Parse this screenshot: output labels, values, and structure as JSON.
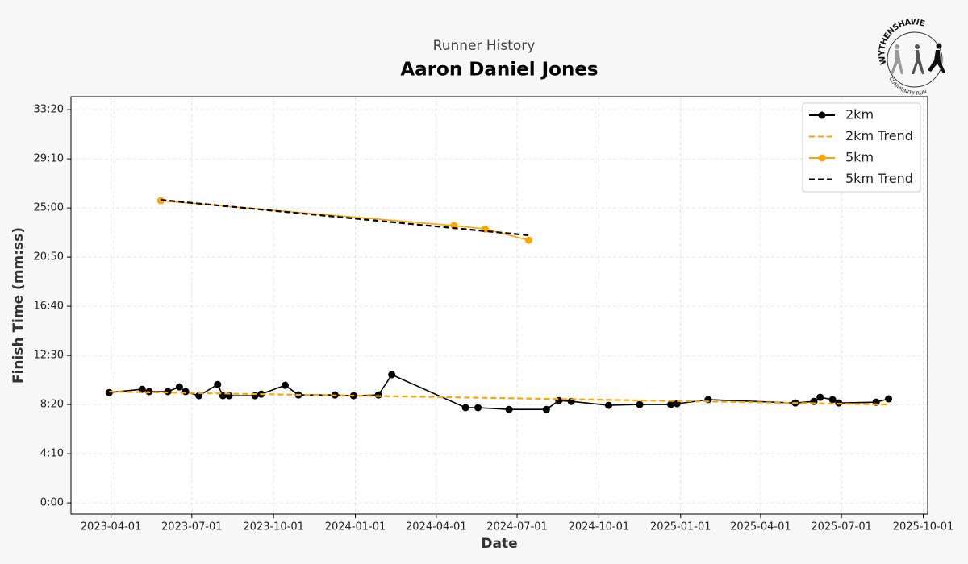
{
  "chart_data": {
    "type": "line",
    "subtitle": "Runner History",
    "title": "Aaron Daniel Jones",
    "x_label": "Date",
    "y_label": "Finish Time (mm:ss)",
    "logo_text": [
      "WYTHENSHAWE",
      "COMMUNITY RUN"
    ],
    "grid": true,
    "legend": "upper right",
    "xlim": [
      "2023-02-15",
      "2025-10-06"
    ],
    "xticks": [
      "2023-04-01",
      "2023-07-01",
      "2023-10-01",
      "2024-01-01",
      "2024-04-01",
      "2024-07-01",
      "2024-10-01",
      "2025-01-01",
      "2025-04-01",
      "2025-07-01",
      "2025-10-01"
    ],
    "ylim": [
      -57,
      2066
    ],
    "yticks": [
      {
        "value": 0,
        "label": "0:00"
      },
      {
        "value": 250,
        "label": "4:10"
      },
      {
        "value": 500,
        "label": "8:20"
      },
      {
        "value": 750,
        "label": "12:30"
      },
      {
        "value": 1000,
        "label": "16:40"
      },
      {
        "value": 1250,
        "label": "20:50"
      },
      {
        "value": 1500,
        "label": "25:00"
      },
      {
        "value": 1750,
        "label": "29:10"
      },
      {
        "value": 2000,
        "label": "33:20"
      }
    ],
    "series": [
      {
        "name": "2km",
        "color": "#000000",
        "linestyle": "solid",
        "marker": true,
        "x": [
          "2023-03-30",
          "2023-05-06",
          "2023-05-14",
          "2023-06-04",
          "2023-06-17",
          "2023-06-24",
          "2023-07-09",
          "2023-07-30",
          "2023-08-05",
          "2023-08-12",
          "2023-09-10",
          "2023-09-17",
          "2023-10-14",
          "2023-10-29",
          "2023-12-09",
          "2023-12-30",
          "2024-01-27",
          "2024-02-11",
          "2024-05-04",
          "2024-05-18",
          "2024-06-22",
          "2024-08-03",
          "2024-08-17",
          "2024-08-31",
          "2024-10-12",
          "2024-11-16",
          "2024-12-21",
          "2024-12-28",
          "2025-02-01",
          "2025-05-10",
          "2025-05-31",
          "2025-06-07",
          "2025-06-21",
          "2025-06-28",
          "2025-08-09",
          "2025-08-23"
        ],
        "values": [
          561,
          578,
          566,
          566,
          590,
          566,
          545,
          602,
          545,
          545,
          545,
          553,
          598,
          549,
          549,
          545,
          549,
          652,
          484,
          484,
          475,
          475,
          520,
          516,
          496,
          500,
          500,
          504,
          525,
          508,
          516,
          537,
          525,
          508,
          512,
          529
        ]
      },
      {
        "name": "2km Trend",
        "color": "#ffa500",
        "linestyle": "dashed",
        "marker": false,
        "x": [
          "2023-03-30",
          "2025-08-23"
        ],
        "values": [
          566,
          500
        ]
      },
      {
        "name": "5km",
        "color": "#ffa500",
        "linestyle": "solid",
        "marker": true,
        "x": [
          "2023-05-27",
          "2024-04-21",
          "2024-05-26",
          "2024-07-14"
        ],
        "values": [
          1537,
          1410,
          1393,
          1336
        ]
      },
      {
        "name": "5km Trend",
        "color": "#000000",
        "linestyle": "dashed",
        "marker": false,
        "x": [
          "2023-05-27",
          "2024-07-14"
        ],
        "values": [
          1541,
          1361
        ]
      }
    ]
  }
}
